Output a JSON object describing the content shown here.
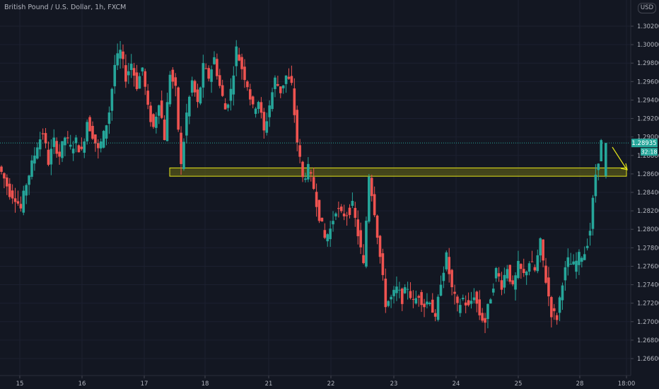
{
  "header": {
    "symbol_title": "British Pound / U.S. Dollar, 1h, FXCM",
    "currency_badge": "USD"
  },
  "price_tag": {
    "value": "1.28935",
    "countdown": "32:18"
  },
  "colors": {
    "background": "#131722",
    "bull": "#26a69a",
    "bear": "#ef5350",
    "zone_fill": "#6b6b14",
    "zone_border": "#e5e51a",
    "arrow": "#e5e51a",
    "axis_text": "#b2b5be",
    "grid": "#1c2030"
  },
  "chart_data": {
    "type": "candlestick",
    "title": "British Pound / U.S. Dollar, 1h, FXCM",
    "ylim": [
      1.265,
      1.303
    ],
    "y_ticks": [
      1.302,
      1.3,
      1.298,
      1.296,
      1.294,
      1.292,
      1.29,
      1.288,
      1.286,
      1.284,
      1.282,
      1.28,
      1.278,
      1.276,
      1.274,
      1.272,
      1.27,
      1.268,
      1.266
    ],
    "x_ticks": [
      "15",
      "16",
      "17",
      "18",
      "21",
      "22",
      "23",
      "24",
      "25",
      "28",
      "18:00"
    ],
    "last_price": 1.28935,
    "annotations": [
      {
        "type": "zone",
        "price_from": 1.28575,
        "price_to": 1.28665,
        "start": "17",
        "end": "28"
      },
      {
        "type": "arrow",
        "direction": "down-right",
        "near": "1.28935"
      }
    ],
    "price_path": [
      1.2868,
      1.2855,
      1.284,
      1.2835,
      1.2822,
      1.285,
      1.287,
      1.2892,
      1.2905,
      1.2873,
      1.2895,
      1.288,
      1.29,
      1.2888,
      1.2895,
      1.2883,
      1.2918,
      1.2903,
      1.2885,
      1.2902,
      1.2928,
      1.2978,
      1.2992,
      1.2965,
      1.298,
      1.2956,
      1.2975,
      1.293,
      1.291,
      1.294,
      1.29,
      1.297,
      1.295,
      1.2868,
      1.2925,
      1.296,
      1.2935,
      1.2975,
      1.2965,
      1.2985,
      1.2955,
      1.293,
      1.295,
      1.2995,
      1.2975,
      1.2957,
      1.293,
      1.294,
      1.2905,
      1.2935,
      1.2962,
      1.295,
      1.2966,
      1.2955,
      1.2895,
      1.2855,
      1.2865,
      1.2845,
      1.2815,
      1.279,
      1.28,
      1.2823,
      1.2815,
      1.2818,
      1.2825,
      1.2795,
      1.276,
      1.286,
      1.282,
      1.277,
      1.272,
      1.2725,
      1.2735,
      1.2725,
      1.2738,
      1.272,
      1.273,
      1.2718,
      1.2725,
      1.27,
      1.2745,
      1.277,
      1.2735,
      1.2715,
      1.2725,
      1.2715,
      1.273,
      1.2708,
      1.27,
      1.2728,
      1.2755,
      1.274,
      1.276,
      1.2735,
      1.276,
      1.275,
      1.2765,
      1.2755,
      1.2785,
      1.2745,
      1.271,
      1.2705,
      1.2745,
      1.2765,
      1.276,
      1.277,
      1.2775,
      1.28,
      1.286,
      1.28935
    ]
  }
}
